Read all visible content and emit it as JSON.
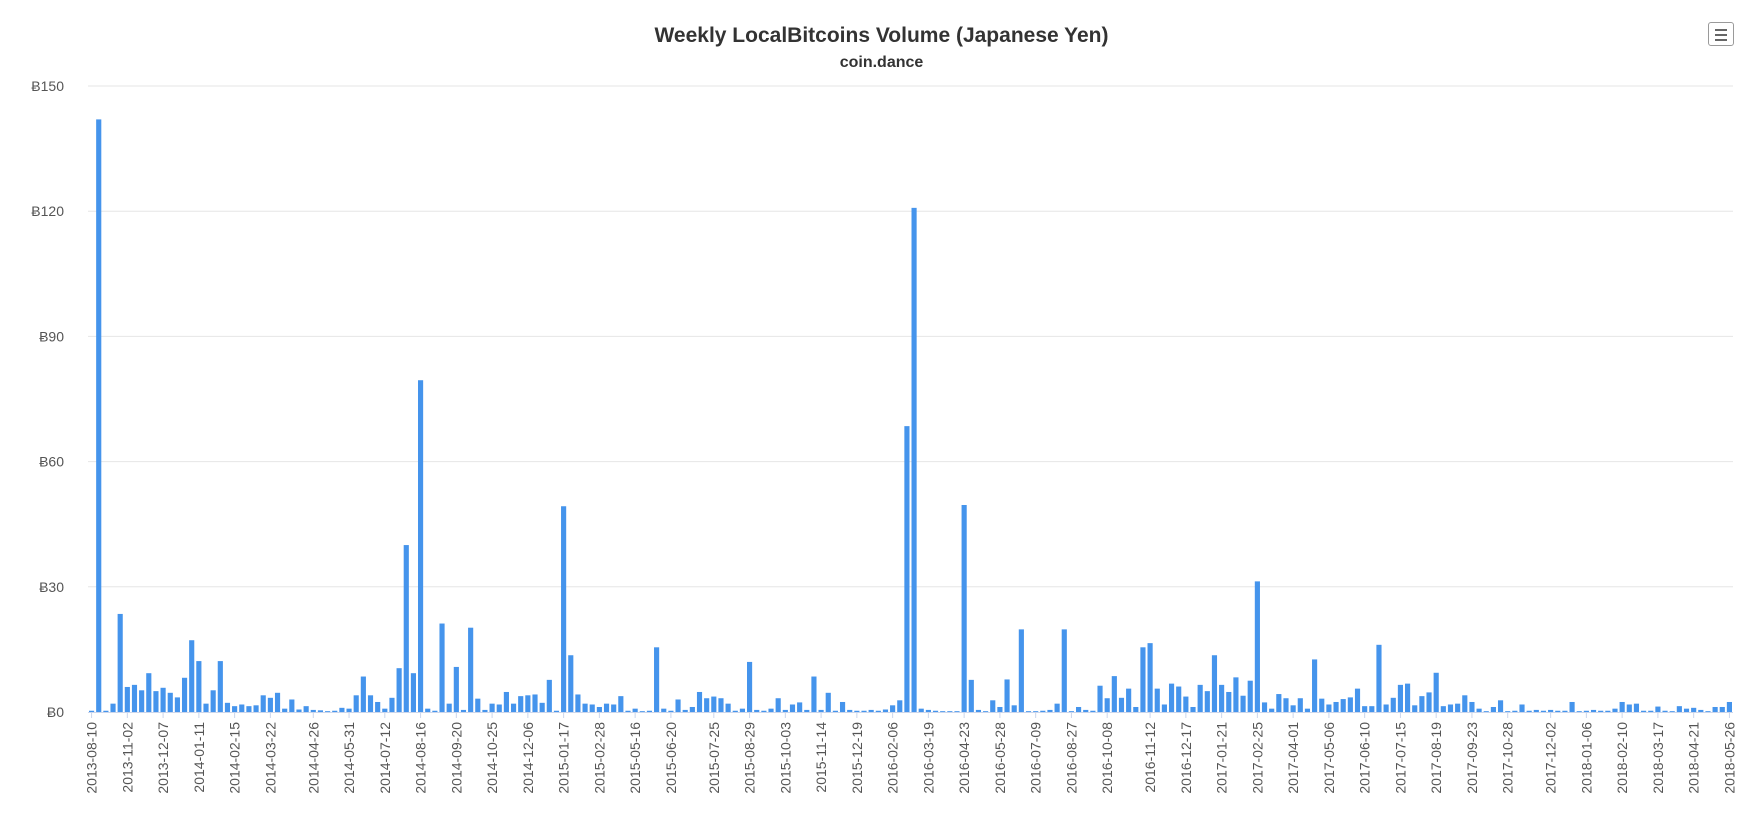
{
  "chart_data": {
    "type": "bar",
    "title": "Weekly LocalBitcoins Volume (Japanese Yen)",
    "subtitle": "coin.dance",
    "ylim": [
      0,
      150
    ],
    "y_ticks": [
      "Ƀ0",
      "Ƀ30",
      "Ƀ60",
      "Ƀ90",
      "Ƀ120",
      "Ƀ150"
    ],
    "y_tick_values": [
      0,
      30,
      60,
      90,
      120,
      150
    ],
    "x_tick_labels": [
      "2013-08-10",
      "2013-11-02",
      "2013-12-07",
      "2014-01-11",
      "2014-02-15",
      "2014-03-22",
      "2014-04-26",
      "2014-05-31",
      "2014-07-12",
      "2014-08-16",
      "2014-09-20",
      "2014-10-25",
      "2014-12-06",
      "2015-01-17",
      "2015-02-28",
      "2015-05-16",
      "2015-06-20",
      "2015-07-25",
      "2015-08-29",
      "2015-10-03",
      "2015-11-14",
      "2015-12-19",
      "2016-02-06",
      "2016-03-19",
      "2016-04-23",
      "2016-05-28",
      "2016-07-09",
      "2016-08-27",
      "2016-10-08",
      "2016-11-12",
      "2016-12-17",
      "2017-01-21",
      "2017-02-25",
      "2017-04-01",
      "2017-05-06",
      "2017-06-10",
      "2017-07-15",
      "2017-08-19",
      "2017-09-23",
      "2017-10-28",
      "2017-12-02",
      "2018-01-06",
      "2018-02-10",
      "2018-03-17",
      "2018-04-21",
      "2018-05-26"
    ],
    "grid": true,
    "color": "#4594ec",
    "values": [
      0.3,
      142,
      0.3,
      2,
      23.5,
      6,
      6.5,
      5.2,
      9.3,
      5,
      5.8,
      4.6,
      3.5,
      8.2,
      17.2,
      12.2,
      2,
      5.2,
      12.2,
      2.2,
      1.4,
      1.8,
      1.4,
      1.6,
      4,
      3.4,
      4.6,
      0.8,
      3,
      0.6,
      1.4,
      0.5,
      0.4,
      0.2,
      0.3,
      1,
      0.8,
      4,
      8.5,
      4,
      2.4,
      0.8,
      3.4,
      10.5,
      40,
      9.3,
      79.5,
      0.8,
      0.3,
      21.2,
      2,
      10.8,
      0.5,
      20.2,
      3.2,
      0.5,
      2,
      1.8,
      4.8,
      2,
      3.8,
      4,
      4.2,
      2.2,
      7.7,
      0.3,
      49.3,
      13.6,
      4.2,
      2,
      1.8,
      1.2,
      2,
      1.8,
      3.8,
      0.3,
      0.8,
      0.2,
      0.3,
      15.5,
      0.8,
      0.3,
      3,
      0.5,
      1.2,
      4.8,
      3.3,
      3.7,
      3.3,
      2,
      0.3,
      0.8,
      12,
      0.5,
      0.3,
      0.8,
      3.3,
      0.5,
      1.8,
      2.3,
      0.5,
      8.5,
      0.5,
      4.6,
      0.3,
      2.4,
      0.5,
      0.3,
      0.3,
      0.5,
      0.3,
      0.6,
      1.6,
      2.8,
      68.5,
      120.8,
      0.8,
      0.5,
      0.3,
      0.2,
      0.2,
      0.2,
      49.6,
      7.7,
      0.5,
      0.2,
      2.8,
      1.2,
      7.8,
      1.6,
      19.8,
      0.2,
      0.2,
      0.3,
      0.5,
      2,
      19.8,
      0.2,
      1.2,
      0.5,
      0.3,
      6.3,
      3.3,
      8.6,
      3.4,
      5.6,
      1.2,
      15.5,
      16.5,
      5.6,
      1.8,
      6.8,
      6.1,
      3.7,
      1.2,
      6.5,
      5,
      13.6,
      6.5,
      4.8,
      8.3,
      3.9,
      7.5,
      31.3,
      2.3,
      0.8,
      4.3,
      3.3,
      1.6,
      3.3,
      0.8,
      12.6,
      3.2,
      1.8,
      2.4,
      3.1,
      3.5,
      5.6,
      1.4,
      1.4,
      16.1,
      1.8,
      3.4,
      6.5,
      6.8,
      1.6,
      3.8,
      4.7,
      9.4,
      1.4,
      1.8,
      2,
      4,
      2.4,
      0.8,
      0.2,
      1.2,
      2.8,
      0.2,
      0.3,
      1.8,
      0.3,
      0.5,
      0.3,
      0.5,
      0.3,
      0.3,
      2.4,
      0.2,
      0.3,
      0.5,
      0.3,
      0.3,
      0.8,
      2.4,
      1.8,
      2,
      0.3,
      0.3,
      1.3,
      0.3,
      0.2,
      1.4,
      0.8,
      1,
      0.5,
      0.2,
      1.2,
      1.2,
      2.4
    ]
  }
}
